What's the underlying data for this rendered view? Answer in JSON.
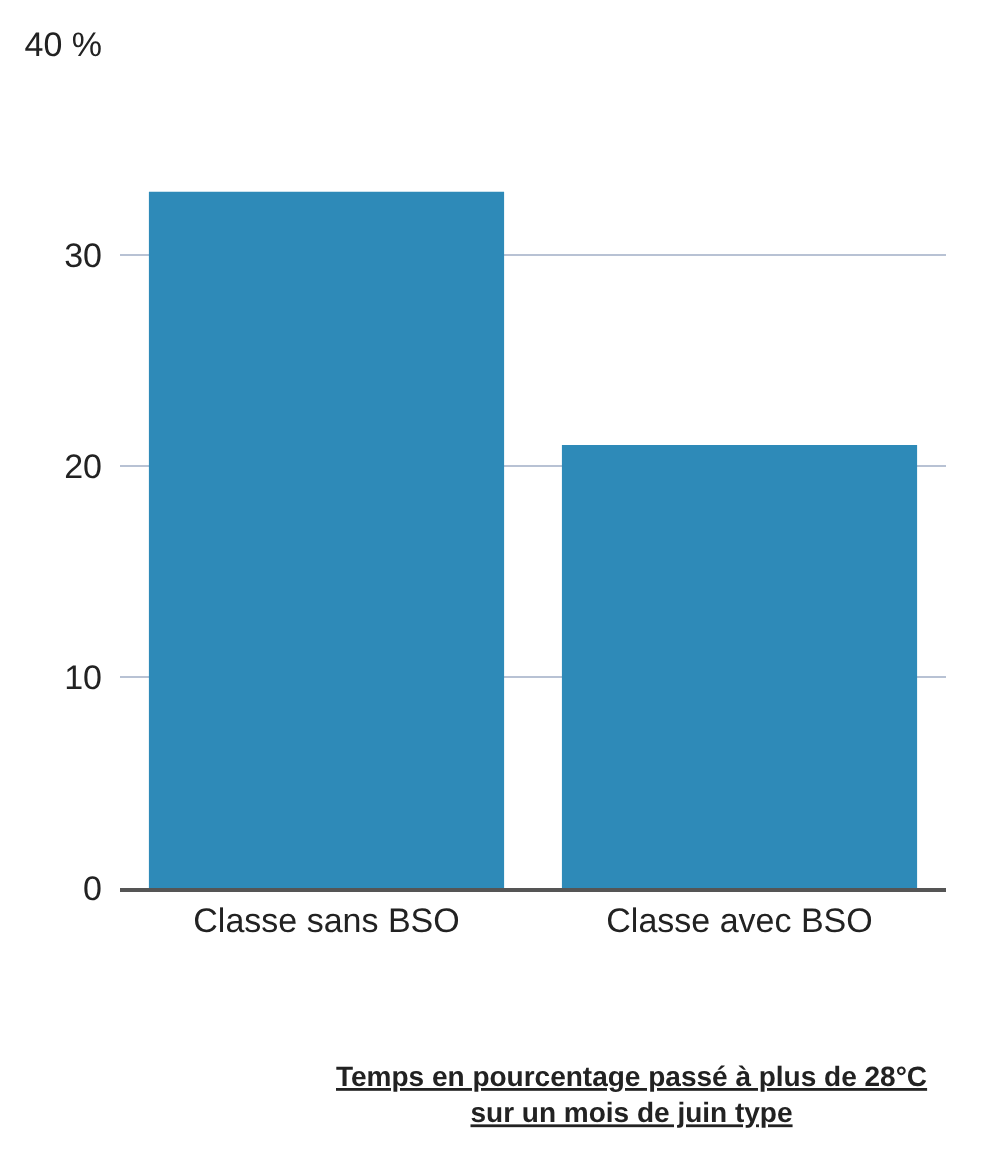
{
  "chart_data": {
    "type": "bar",
    "categories": [
      "Classe sans BSO",
      "Classe avec BSO"
    ],
    "values": [
      33,
      21
    ],
    "color": "#2e8ab8",
    "ylim": [
      0,
      40
    ],
    "yticks": [
      0,
      10,
      20,
      30,
      {
        "value": 40,
        "label": "40 %"
      }
    ],
    "grid": "y",
    "annotations": [
      "Temps en pourcentage passé à plus de 28°C sur un mois de juin type"
    ]
  }
}
